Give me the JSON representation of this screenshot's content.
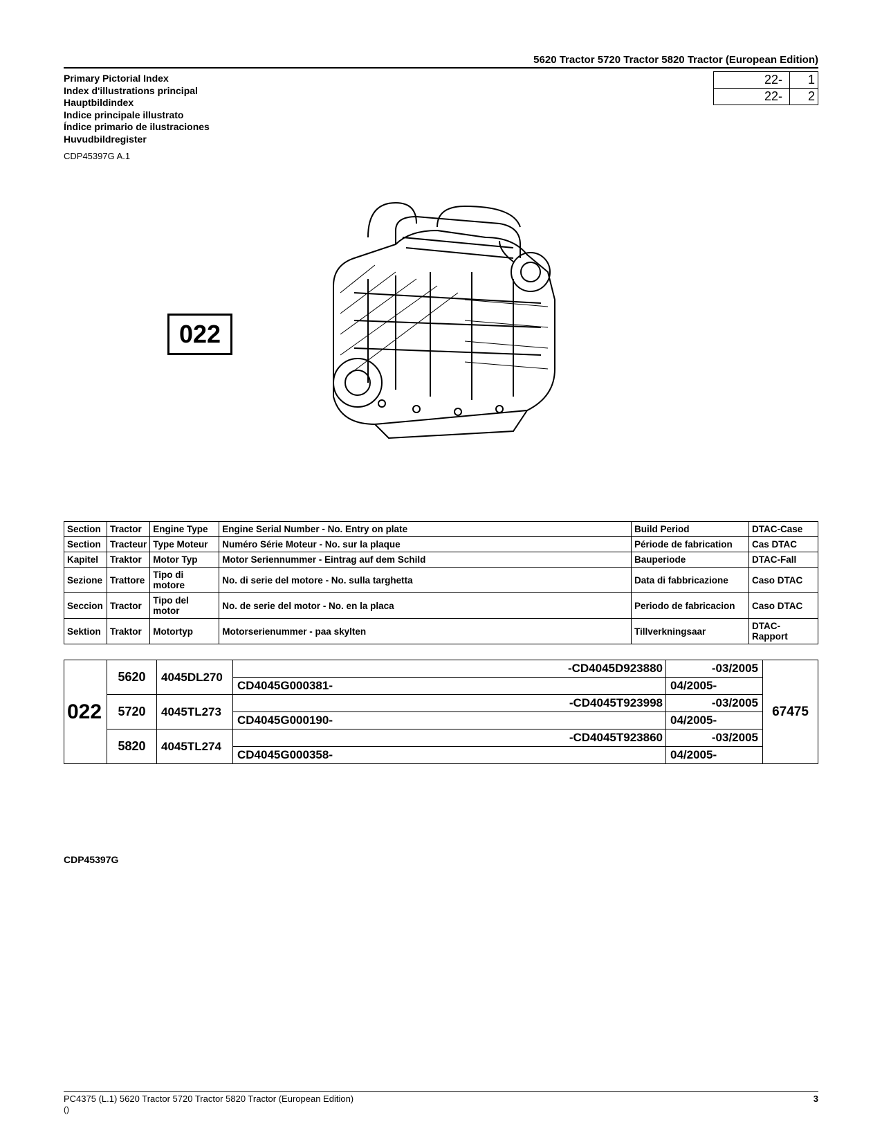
{
  "header": {
    "doc_title": "5620 Tractor 5720 Tractor 5820 Tractor (European Edition)",
    "index_titles": [
      "Primary Pictorial Index",
      "Index d'illustrations principal",
      "Hauptbildindex",
      "Indice principale illustrato",
      "Índice primario de ilustraciones",
      "Huvudbildregister"
    ],
    "doc_code": "CDP45397G A.1",
    "page_refs": [
      {
        "a": "22-",
        "b": "1"
      },
      {
        "a": "22-",
        "b": "2"
      }
    ]
  },
  "figure": {
    "callout": "022"
  },
  "lang_table": {
    "rows": [
      [
        "Section",
        "Tractor",
        "Engine Type",
        "Engine Serial Number - No. Entry on plate",
        "Build Period",
        "DTAC-Case"
      ],
      [
        "Section",
        "Tracteur",
        "Type Moteur",
        "Numéro Série Moteur - No. sur la plaque",
        "Période de fabrication",
        "Cas DTAC"
      ],
      [
        "Kapitel",
        "Traktor",
        "Motor Typ",
        "Motor Seriennummer - Eintrag auf dem Schild",
        "Bauperiode",
        "DTAC-Fall"
      ],
      [
        "Sezione",
        "Trattore",
        "Tipo di motore",
        "No. di serie del motore - No. sulla targhetta",
        "Data di fabbricazione",
        "Caso DTAC"
      ],
      [
        "Seccion",
        "Tractor",
        "Tipo del motor",
        "No. de serie del motor - No. en la placa",
        "Periodo de fabricacion",
        "Caso DTAC"
      ],
      [
        "Sektion",
        "Traktor",
        "Motortyp",
        "Motorserienummer - paa skylten",
        "Tillverkningsaar",
        "DTAC-Rapport"
      ]
    ]
  },
  "data_table": {
    "section": "022",
    "dtac": "67475",
    "groups": [
      {
        "tractor": "5620",
        "engine": "4045DL270",
        "rows": [
          {
            "serial": "-CD4045D923880",
            "align": "right",
            "period": "-03/2005",
            "palign": "right"
          },
          {
            "serial": "CD4045G000381-",
            "align": "left",
            "period": "04/2005-",
            "palign": "left"
          }
        ]
      },
      {
        "tractor": "5720",
        "engine": "4045TL273",
        "rows": [
          {
            "serial": "-CD4045T923998",
            "align": "right",
            "period": "-03/2005",
            "palign": "right"
          },
          {
            "serial": "CD4045G000190-",
            "align": "left",
            "period": "04/2005-",
            "palign": "left"
          }
        ]
      },
      {
        "tractor": "5820",
        "engine": "4045TL274",
        "rows": [
          {
            "serial": "-CD4045T923860",
            "align": "right",
            "period": "-03/2005",
            "palign": "right"
          },
          {
            "serial": "CD4045G000358-",
            "align": "left",
            "period": "04/2005-",
            "palign": "left"
          }
        ]
      }
    ]
  },
  "bottom_code": "CDP45397G",
  "footer": {
    "left": "PC4375   (L.1)   5620 Tractor 5720 Tractor 5820 Tractor (European Edition)",
    "paren": "()",
    "page_num": "3"
  }
}
